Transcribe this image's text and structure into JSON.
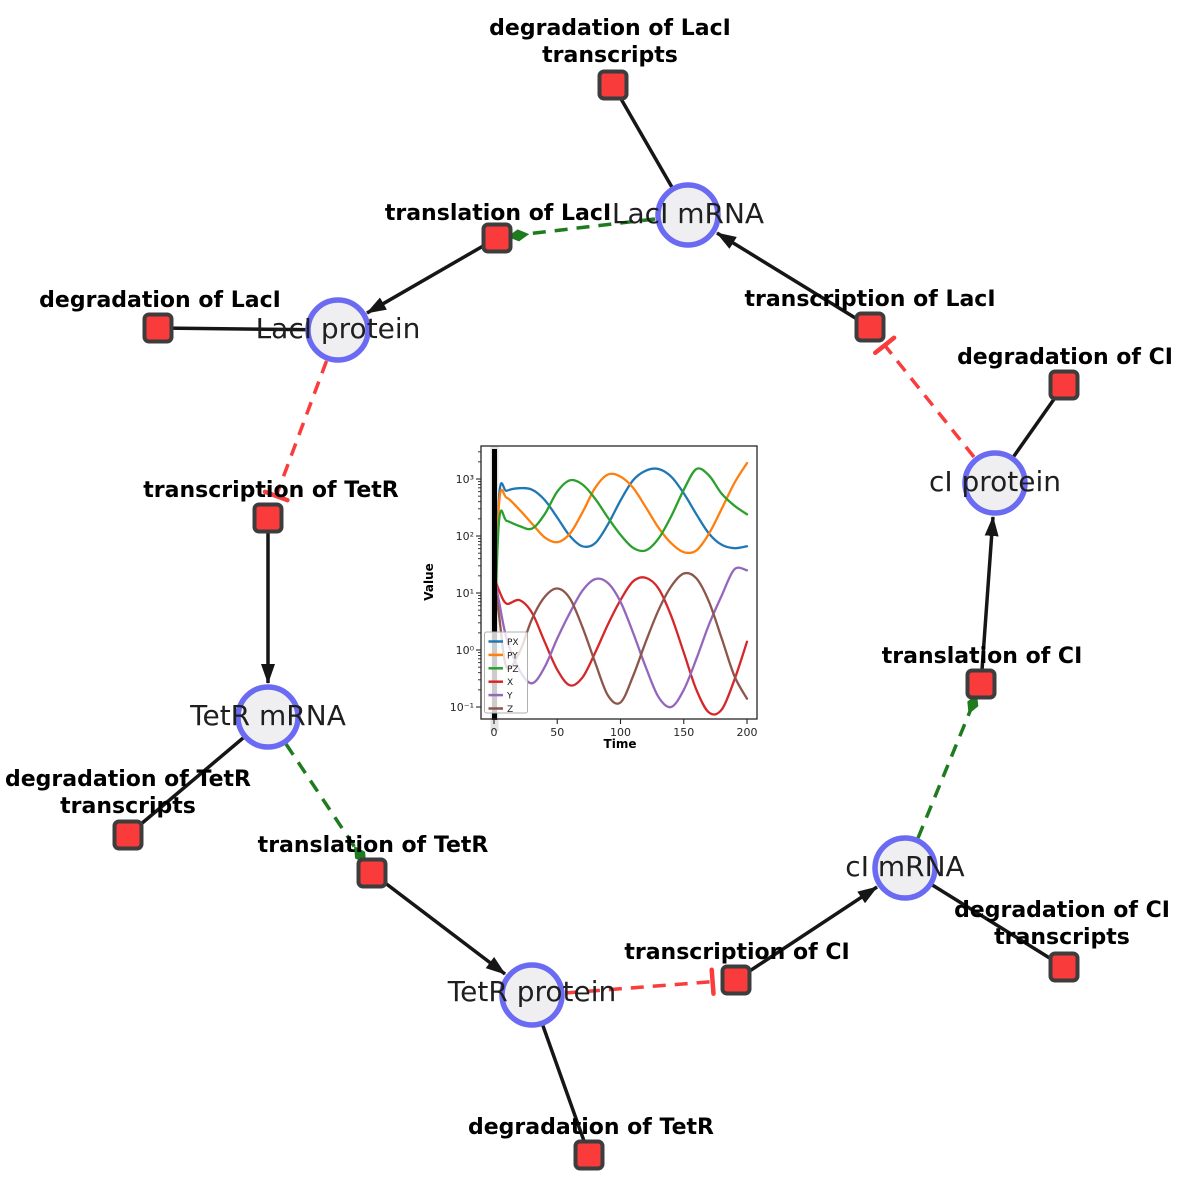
{
  "diagram": {
    "species": [
      {
        "id": "laci-mrna",
        "label": "LacI mRNA"
      },
      {
        "id": "laci-protein",
        "label": "LacI protein"
      },
      {
        "id": "ci-protein",
        "label": "cI protein"
      },
      {
        "id": "tetr-mrna",
        "label": "TetR mRNA"
      },
      {
        "id": "ci-mrna",
        "label": "cI mRNA"
      },
      {
        "id": "tetr-protein",
        "label": "TetR protein"
      }
    ],
    "reactions": [
      {
        "id": "degradation-laci-transcripts",
        "line1": "degradation of LacI",
        "line2": "transcripts"
      },
      {
        "id": "translation-laci",
        "line1": "translation of LacI"
      },
      {
        "id": "transcription-laci",
        "line1": "transcription of LacI"
      },
      {
        "id": "degradation-laci",
        "line1": "degradation of LacI"
      },
      {
        "id": "degradation-ci",
        "line1": "degradation of CI"
      },
      {
        "id": "transcription-tetr",
        "line1": "transcription of TetR"
      },
      {
        "id": "translation-ci",
        "line1": "translation of CI"
      },
      {
        "id": "degradation-tetr-transcripts",
        "line1": "degradation of TetR",
        "line2": "transcripts"
      },
      {
        "id": "translation-tetr",
        "line1": "translation of TetR"
      },
      {
        "id": "transcription-ci",
        "line1": "transcription of CI"
      },
      {
        "id": "degradation-ci-transcripts",
        "line1": "degradation of CI",
        "line2": "transcripts"
      },
      {
        "id": "degradation-tetr",
        "line1": "degradation of TetR"
      }
    ],
    "edges": [
      {
        "from": "LacI mRNA",
        "to": "degradation of LacI transcripts",
        "type": "consumption"
      },
      {
        "from": "LacI mRNA",
        "to": "translation of LacI",
        "type": "modifier"
      },
      {
        "from": "transcription of LacI",
        "to": "LacI mRNA",
        "type": "production"
      },
      {
        "from": "translation of LacI",
        "to": "LacI protein",
        "type": "production"
      },
      {
        "from": "LacI protein",
        "to": "degradation of LacI",
        "type": "consumption"
      },
      {
        "from": "LacI protein",
        "to": "transcription of TetR",
        "type": "inhibition"
      },
      {
        "from": "transcription of TetR",
        "to": "TetR mRNA",
        "type": "production"
      },
      {
        "from": "TetR mRNA",
        "to": "degradation of TetR transcripts",
        "type": "consumption"
      },
      {
        "from": "TetR mRNA",
        "to": "translation of TetR",
        "type": "modifier"
      },
      {
        "from": "translation of TetR",
        "to": "TetR protein",
        "type": "production"
      },
      {
        "from": "TetR protein",
        "to": "degradation of TetR",
        "type": "consumption"
      },
      {
        "from": "TetR protein",
        "to": "transcription of CI",
        "type": "inhibition"
      },
      {
        "from": "transcription of CI",
        "to": "cI mRNA",
        "type": "production"
      },
      {
        "from": "cI mRNA",
        "to": "degradation of CI transcripts",
        "type": "consumption"
      },
      {
        "from": "cI mRNA",
        "to": "translation of CI",
        "type": "modifier"
      },
      {
        "from": "translation of CI",
        "to": "cI protein",
        "type": "production"
      },
      {
        "from": "cI protein",
        "to": "degradation of CI",
        "type": "consumption"
      },
      {
        "from": "cI protein",
        "to": "transcription of LacI",
        "type": "inhibition"
      }
    ],
    "colors": {
      "species_fill": "#efeff1",
      "species_border": "#6a6af2",
      "reaction_fill": "#f93b3b",
      "reaction_border": "#3d3d3d",
      "edge_black": "#161616",
      "edge_modifier_green": "#1e7b1e",
      "edge_inhibition_red": "#fa3c3c"
    }
  },
  "chart_data": {
    "type": "line",
    "title": "",
    "xlabel": "Time",
    "ylabel": "Value",
    "y_scale": "log",
    "xlim": [
      -10,
      208
    ],
    "ylim": [
      0.062,
      3800
    ],
    "x_ticks": [
      0,
      50,
      100,
      150,
      200
    ],
    "y_tick_labels": [
      "10⁻¹",
      "10⁰",
      "10¹",
      "10²",
      "10³"
    ],
    "legend_position": "lower left",
    "annotation": "vertical black line at t=0",
    "x": [
      0,
      4,
      10,
      20,
      30,
      40,
      50,
      60,
      70,
      80,
      90,
      100,
      110,
      120,
      130,
      140,
      150,
      160,
      170,
      180,
      190,
      200
    ],
    "series": [
      {
        "name": "PX",
        "color": "#1f77b4",
        "values": [
          1,
          500,
          620,
          690,
          650,
          430,
          210,
          100,
          66,
          75,
          160,
          420,
          950,
          1400,
          1500,
          1100,
          560,
          240,
          110,
          70,
          61,
          66
        ]
      },
      {
        "name": "PY",
        "color": "#ff7f0e",
        "values": [
          1,
          380,
          470,
          290,
          165,
          95,
          78,
          110,
          260,
          700,
          1200,
          1100,
          700,
          320,
          140,
          75,
          52,
          56,
          110,
          300,
          850,
          1900
        ]
      },
      {
        "name": "PZ",
        "color": "#2ca02c",
        "values": [
          1,
          190,
          185,
          150,
          135,
          240,
          600,
          950,
          800,
          450,
          210,
          105,
          62,
          56,
          90,
          220,
          650,
          1500,
          1150,
          550,
          340,
          240
        ]
      },
      {
        "name": "X",
        "color": "#d62728",
        "values": [
          20,
          11,
          6.5,
          7.5,
          4.5,
          1.4,
          0.45,
          0.24,
          0.33,
          0.9,
          2.8,
          7.5,
          16,
          18.5,
          12,
          4,
          0.9,
          0.2,
          0.08,
          0.09,
          0.3,
          1.4
        ]
      },
      {
        "name": "Y",
        "color": "#9467bd",
        "values": [
          20,
          7,
          1.6,
          0.45,
          0.26,
          0.5,
          1.6,
          4.5,
          11,
          17.5,
          15,
          7,
          2,
          0.5,
          0.15,
          0.1,
          0.2,
          0.7,
          2.8,
          9,
          26,
          25
        ]
      },
      {
        "name": "Z",
        "color": "#8c564b",
        "values": [
          20,
          4,
          0.5,
          0.9,
          3.5,
          8.5,
          12,
          8,
          2.5,
          0.6,
          0.16,
          0.12,
          0.35,
          1.4,
          5,
          13,
          22,
          18,
          7,
          1.6,
          0.35,
          0.14
        ]
      }
    ]
  }
}
